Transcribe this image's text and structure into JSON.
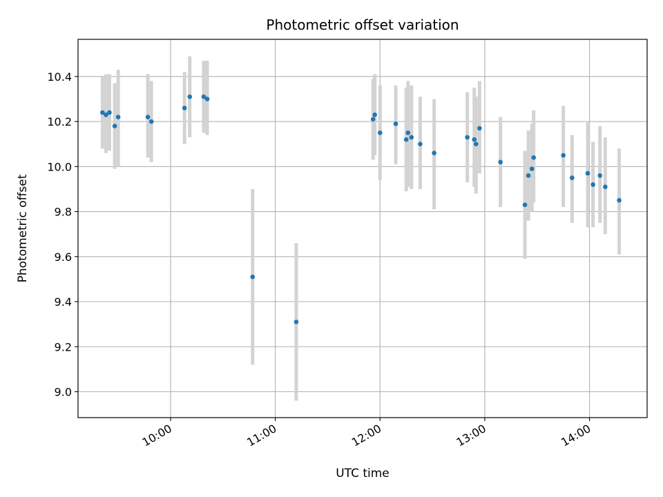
{
  "chart_data": {
    "type": "scatter",
    "title": "Photometric offset variation",
    "xlabel": "UTC time",
    "ylabel": "Photometric offset",
    "x_tick_labels": [
      "10:00",
      "11:00",
      "12:00",
      "13:00",
      "14:00"
    ],
    "y_tick_labels": [
      "9.0",
      "9.2",
      "9.4",
      "9.6",
      "9.8",
      "10.0",
      "10.2",
      "10.4"
    ],
    "x_ticks": [
      "10:00",
      "11:00",
      "12:00",
      "13:00",
      "14:00"
    ],
    "y_ticks": [
      9.0,
      9.2,
      9.4,
      9.6,
      9.8,
      10.0,
      10.2,
      10.4
    ],
    "xlim": [
      "09:07",
      "14:33"
    ],
    "ylim": [
      8.885,
      10.565
    ],
    "grid": true,
    "colors": {
      "marker": "#1f77b4",
      "errorbar": "#d3d3d3",
      "grid": "#b0b0b0"
    },
    "points": [
      {
        "t": "09:21",
        "y": 10.24,
        "lo": 10.08,
        "hi": 10.4
      },
      {
        "t": "09:23",
        "y": 10.23,
        "lo": 10.06,
        "hi": 10.41
      },
      {
        "t": "09:25",
        "y": 10.24,
        "lo": 10.07,
        "hi": 10.41
      },
      {
        "t": "09:28",
        "y": 10.18,
        "lo": 9.99,
        "hi": 10.37
      },
      {
        "t": "09:30",
        "y": 10.22,
        "lo": 10.0,
        "hi": 10.43
      },
      {
        "t": "09:47",
        "y": 10.22,
        "lo": 10.04,
        "hi": 10.41
      },
      {
        "t": "09:49",
        "y": 10.2,
        "lo": 10.02,
        "hi": 10.38
      },
      {
        "t": "10:08",
        "y": 10.26,
        "lo": 10.1,
        "hi": 10.42
      },
      {
        "t": "10:11",
        "y": 10.31,
        "lo": 10.13,
        "hi": 10.49
      },
      {
        "t": "10:19",
        "y": 10.31,
        "lo": 10.15,
        "hi": 10.47
      },
      {
        "t": "10:21",
        "y": 10.3,
        "lo": 10.14,
        "hi": 10.47
      },
      {
        "t": "10:47",
        "y": 9.51,
        "lo": 9.12,
        "hi": 9.9
      },
      {
        "t": "11:12",
        "y": 9.31,
        "lo": 8.96,
        "hi": 9.66
      },
      {
        "t": "11:56",
        "y": 10.21,
        "lo": 10.03,
        "hi": 10.39
      },
      {
        "t": "11:57",
        "y": 10.23,
        "lo": 10.05,
        "hi": 10.41
      },
      {
        "t": "12:00",
        "y": 10.15,
        "lo": 9.94,
        "hi": 10.36
      },
      {
        "t": "12:09",
        "y": 10.19,
        "lo": 10.01,
        "hi": 10.36
      },
      {
        "t": "12:15",
        "y": 10.12,
        "lo": 9.89,
        "hi": 10.35
      },
      {
        "t": "12:16",
        "y": 10.15,
        "lo": 9.91,
        "hi": 10.38
      },
      {
        "t": "12:18",
        "y": 10.13,
        "lo": 9.9,
        "hi": 10.36
      },
      {
        "t": "12:23",
        "y": 10.1,
        "lo": 9.9,
        "hi": 10.31
      },
      {
        "t": "12:31",
        "y": 10.06,
        "lo": 9.81,
        "hi": 10.3
      },
      {
        "t": "12:50",
        "y": 10.13,
        "lo": 9.93,
        "hi": 10.33
      },
      {
        "t": "12:54",
        "y": 10.12,
        "lo": 9.91,
        "hi": 10.35
      },
      {
        "t": "12:55",
        "y": 10.1,
        "lo": 9.88,
        "hi": 10.31
      },
      {
        "t": "12:57",
        "y": 10.17,
        "lo": 9.97,
        "hi": 10.38
      },
      {
        "t": "13:09",
        "y": 10.02,
        "lo": 9.82,
        "hi": 10.22
      },
      {
        "t": "13:23",
        "y": 9.83,
        "lo": 9.59,
        "hi": 10.07
      },
      {
        "t": "13:25",
        "y": 9.96,
        "lo": 9.76,
        "hi": 10.16
      },
      {
        "t": "13:27",
        "y": 9.99,
        "lo": 9.8,
        "hi": 10.19
      },
      {
        "t": "13:28",
        "y": 10.04,
        "lo": 9.84,
        "hi": 10.25
      },
      {
        "t": "13:45",
        "y": 10.05,
        "lo": 9.82,
        "hi": 10.27
      },
      {
        "t": "13:50",
        "y": 9.95,
        "lo": 9.75,
        "hi": 10.14
      },
      {
        "t": "13:59",
        "y": 9.97,
        "lo": 9.73,
        "hi": 10.2
      },
      {
        "t": "14:02",
        "y": 9.92,
        "lo": 9.73,
        "hi": 10.11
      },
      {
        "t": "14:06",
        "y": 9.96,
        "lo": 9.75,
        "hi": 10.18
      },
      {
        "t": "14:09",
        "y": 9.91,
        "lo": 9.7,
        "hi": 10.13
      },
      {
        "t": "14:17",
        "y": 9.85,
        "lo": 9.61,
        "hi": 10.08
      }
    ]
  }
}
